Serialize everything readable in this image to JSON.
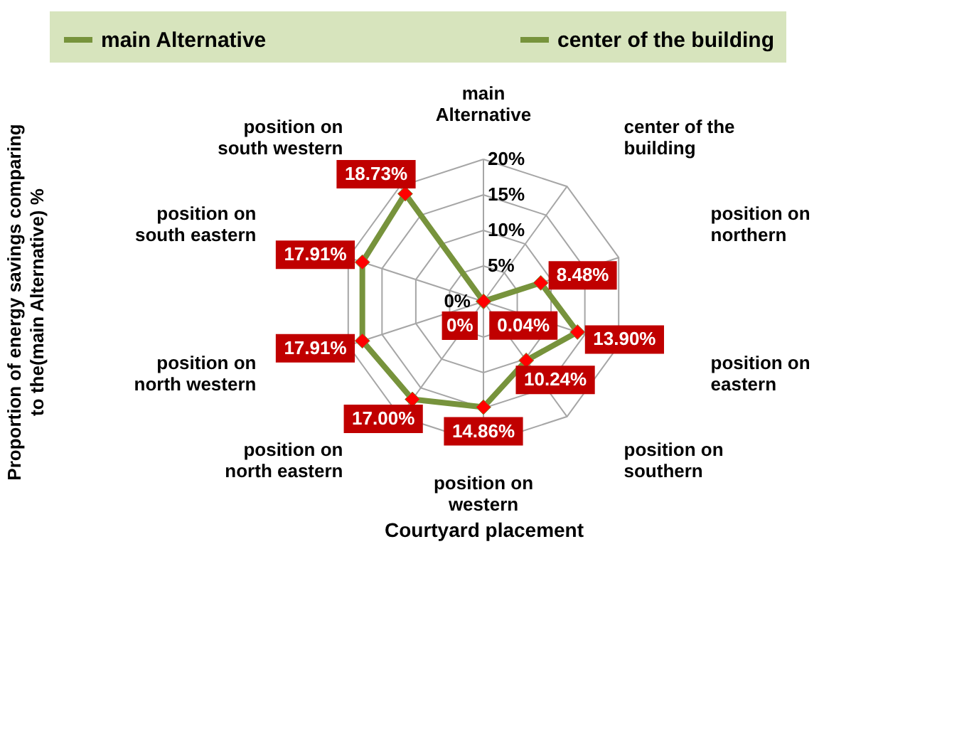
{
  "chart_data": {
    "type": "radar",
    "categories": [
      "main Alternative",
      "center of the building",
      "position on northern",
      "position on eastern",
      "position on southern",
      "position on western",
      "position on north eastern",
      "position on north western",
      "position on  south eastern",
      "position on  south western"
    ],
    "series": [
      {
        "name": "main Alternative",
        "color": "#77933c",
        "colors": [
          "#ff0000",
          "#ff0000",
          "#ff0000",
          "#ff0000",
          "#ff0000",
          "#ff0000",
          "#ff0000",
          "#ff0000",
          "#ff0000",
          "#ff0000"
        ],
        "values": [
          0,
          0.04,
          8.48,
          13.9,
          10.24,
          14.86,
          17.0,
          17.91,
          17.91,
          18.73
        ],
        "value_labels": [
          "0%",
          "0.04%",
          "8.48%",
          "13.90%",
          "10.24%",
          "14.86%",
          "17.00%",
          "17.91%",
          "17.91%",
          "18.73%"
        ]
      }
    ],
    "annotations": [
      "center of the building"
    ],
    "ylim": [
      0,
      20
    ],
    "yticks": [
      {
        "value": 0,
        "label": "0%"
      },
      {
        "value": 5,
        "label": "5%"
      },
      {
        "value": 10,
        "label": "10%"
      },
      {
        "value": 15,
        "label": "15%"
      },
      {
        "value": 20,
        "label": "20%"
      }
    ],
    "xlabel": "Courtyard placement",
    "ylabel": "Proportion of energy savings comparing to the(main Alternative) %",
    "grid": true,
    "legend": "top",
    "marker": "diamond",
    "line_style": "solid"
  }
}
